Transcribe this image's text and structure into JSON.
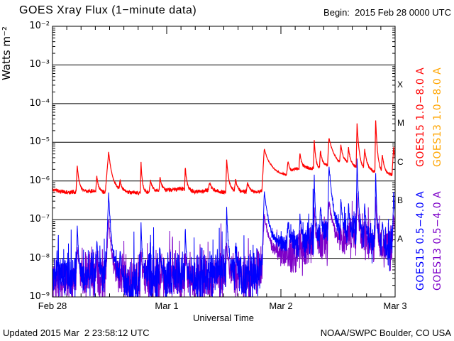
{
  "header": {
    "title": "GOES Xray Flux (1−minute data)",
    "begin_label": "Begin:  2015 Feb 28 0000 UTC"
  },
  "footer": {
    "updated": "Updated 2015 Mar  2 23:58:12 UTC",
    "source": "NOAA/SWPC Boulder, CO USA"
  },
  "chart_data": {
    "type": "line",
    "title": "GOES Xray Flux (1−minute data)",
    "xlabel": "Universal Time",
    "ylabel": "Watts m⁻²",
    "x_unit": "hours since 2015 Feb 28 0000 UTC",
    "x_range_hours": [
      0,
      72
    ],
    "y_scale": "log10",
    "ylim_log10": [
      -9,
      -2
    ],
    "y_decades": [
      -2,
      -3,
      -4,
      -5,
      -6,
      -7,
      -8,
      -9
    ],
    "y_tick_labels": [
      "10⁻²",
      "10⁻³",
      "10⁻⁴",
      "10⁻⁵",
      "10⁻⁶",
      "10⁻⁷",
      "10⁻⁸",
      "10⁻⁹"
    ],
    "grid_decades": [
      -3,
      -4,
      -5,
      -6,
      -7,
      -8
    ],
    "x_ticks": [
      {
        "t": 0,
        "label": "Feb 28"
      },
      {
        "t": 24,
        "label": "Mar 1"
      },
      {
        "t": 48,
        "label": "Mar 2"
      },
      {
        "t": 72,
        "label": "Mar 3"
      }
    ],
    "x_minor_tick_hours": 3,
    "flare_class_bands": [
      {
        "letter": "X",
        "log10_center": -3.5
      },
      {
        "letter": "M",
        "log10_center": -4.5
      },
      {
        "letter": "C",
        "log10_center": -5.5
      },
      {
        "letter": "B",
        "log10_center": -6.5
      },
      {
        "letter": "A",
        "log10_center": -7.5
      }
    ],
    "legend": [
      {
        "label": "GOES15 1.0−8.0 A",
        "color": "#ff0000",
        "column": "inner",
        "half": "top"
      },
      {
        "label": "GOES13 1.0−8.0 A",
        "color": "#ffa500",
        "column": "outer",
        "half": "top"
      },
      {
        "label": "GOES15 0.5−4.0 A",
        "color": "#0000ff",
        "column": "inner",
        "half": "bottom"
      },
      {
        "label": "GOES13 0.5−4.0 A",
        "color": "#7d00c8",
        "column": "outer",
        "half": "bottom"
      }
    ],
    "series": [
      {
        "name": "GOES13 0.5-4.0 A",
        "id": "series-goes13-short",
        "color": "#7d00c8",
        "stroke_width": 1,
        "seed": 23,
        "noise_amp": 0.5,
        "spike_prob": 0.06,
        "spike_amp": 0.9,
        "baseline_log10": [
          [
            0,
            -8.6
          ],
          [
            6,
            -8.5
          ],
          [
            12,
            -8.45
          ],
          [
            18,
            -8.65
          ],
          [
            24,
            -8.5
          ],
          [
            30,
            -8.6
          ],
          [
            36,
            -8.45
          ],
          [
            42,
            -8.5
          ],
          [
            48,
            -8.0
          ],
          [
            52,
            -7.8
          ],
          [
            56,
            -7.6
          ],
          [
            60,
            -7.6
          ],
          [
            64,
            -7.5
          ],
          [
            68,
            -7.7
          ],
          [
            72,
            -7.7
          ]
        ],
        "flares": [
          [
            5.2,
            0.8,
            0.25,
            0.4
          ],
          [
            11.8,
            1.5,
            0.6,
            0.7
          ],
          [
            18.6,
            0.8,
            0.15,
            0.3
          ],
          [
            27.9,
            0.7,
            0.15,
            0.3
          ],
          [
            36.6,
            0.9,
            0.2,
            0.4
          ],
          [
            44.5,
            1.4,
            0.5,
            1.5
          ],
          [
            55.0,
            1.0,
            0.15,
            0.3
          ],
          [
            58.1,
            1.1,
            0.3,
            1.0
          ],
          [
            64.0,
            1.2,
            0.2,
            0.4
          ],
          [
            67.9,
            1.3,
            0.15,
            0.35
          ],
          [
            71.7,
            0.9,
            0.3,
            0.4
          ]
        ]
      },
      {
        "name": "GOES15 1.0-8.0 A",
        "id": "series-goes15-long",
        "color": "#ff0000",
        "stroke_width": 1.2,
        "seed": 11,
        "noise_amp": 0.045,
        "spike_prob": 0,
        "spike_amp": 0,
        "baseline_log10": [
          [
            0,
            -6.22
          ],
          [
            3,
            -6.3
          ],
          [
            6,
            -6.27
          ],
          [
            9,
            -6.25
          ],
          [
            12,
            -6.3
          ],
          [
            15,
            -6.28
          ],
          [
            18,
            -6.32
          ],
          [
            21,
            -6.28
          ],
          [
            24,
            -6.24
          ],
          [
            27,
            -6.2
          ],
          [
            30,
            -6.28
          ],
          [
            33,
            -6.24
          ],
          [
            36,
            -6.3
          ],
          [
            39,
            -6.27
          ],
          [
            42,
            -6.3
          ],
          [
            45,
            -6.25
          ],
          [
            46,
            -6.15
          ],
          [
            48,
            -6.02
          ],
          [
            50,
            -5.92
          ],
          [
            51,
            -5.75
          ],
          [
            53,
            -5.68
          ],
          [
            56,
            -5.7
          ],
          [
            58,
            -5.6
          ],
          [
            60,
            -5.65
          ],
          [
            62,
            -5.58
          ],
          [
            63,
            -5.62
          ],
          [
            65,
            -5.72
          ],
          [
            67,
            -5.76
          ],
          [
            69,
            -5.82
          ],
          [
            71,
            -5.85
          ],
          [
            72,
            -5.8
          ]
        ],
        "flares": [
          [
            5.2,
            0.68,
            0.25,
            0.45
          ],
          [
            9.3,
            0.4,
            0.2,
            0.35
          ],
          [
            11.8,
            1.05,
            0.7,
            0.9
          ],
          [
            14.2,
            0.25,
            0.2,
            0.3
          ],
          [
            18.6,
            0.8,
            0.15,
            0.3
          ],
          [
            20.6,
            0.3,
            0.3,
            0.5
          ],
          [
            22.6,
            0.35,
            0.2,
            0.4
          ],
          [
            27.9,
            0.6,
            0.15,
            0.35
          ],
          [
            33.0,
            0.2,
            0.3,
            0.5
          ],
          [
            36.6,
            0.85,
            0.2,
            0.5
          ],
          [
            38.5,
            0.3,
            0.3,
            0.4
          ],
          [
            41.0,
            0.25,
            0.3,
            0.5
          ],
          [
            44.5,
            1.1,
            0.5,
            2.2
          ],
          [
            49.5,
            0.35,
            0.3,
            0.5
          ],
          [
            52.0,
            0.4,
            0.2,
            0.4
          ],
          [
            55.0,
            0.75,
            0.15,
            0.35
          ],
          [
            56.3,
            0.45,
            0.2,
            0.5
          ],
          [
            58.1,
            0.7,
            0.3,
            1.4
          ],
          [
            60.6,
            0.45,
            0.25,
            0.5
          ],
          [
            62.2,
            0.4,
            0.2,
            0.4
          ],
          [
            64.0,
            1.15,
            0.2,
            0.5
          ],
          [
            65.6,
            0.5,
            0.25,
            0.6
          ],
          [
            67.9,
            1.4,
            0.15,
            0.45
          ],
          [
            69.3,
            0.45,
            0.2,
            0.5
          ],
          [
            71.7,
            0.7,
            0.35,
            0.5
          ]
        ]
      },
      {
        "name": "GOES15 0.5-4.0 A",
        "id": "series-goes15-short",
        "color": "#0000ff",
        "stroke_width": 1,
        "seed": 7,
        "noise_amp": 0.5,
        "spike_prob": 0.07,
        "spike_amp": 1.1,
        "baseline_log10": [
          [
            0,
            -8.55
          ],
          [
            2,
            -8.4
          ],
          [
            4,
            -8.5
          ],
          [
            6,
            -8.6
          ],
          [
            8,
            -8.45
          ],
          [
            10,
            -8.4
          ],
          [
            12,
            -8.3
          ],
          [
            14,
            -8.5
          ],
          [
            16,
            -8.7
          ],
          [
            18,
            -8.6
          ],
          [
            20,
            -8.4
          ],
          [
            22,
            -8.5
          ],
          [
            24,
            -8.45
          ],
          [
            26,
            -8.4
          ],
          [
            28,
            -8.5
          ],
          [
            30,
            -8.55
          ],
          [
            32,
            -8.5
          ],
          [
            34,
            -8.4
          ],
          [
            36,
            -8.3
          ],
          [
            38,
            -8.4
          ],
          [
            40,
            -8.5
          ],
          [
            42,
            -8.45
          ],
          [
            44,
            -8.3
          ],
          [
            46,
            -8.2
          ],
          [
            48,
            -7.9
          ],
          [
            50,
            -7.7
          ],
          [
            52,
            -7.6
          ],
          [
            54,
            -7.45
          ],
          [
            56,
            -7.5
          ],
          [
            58,
            -7.3
          ],
          [
            60,
            -7.5
          ],
          [
            62,
            -7.45
          ],
          [
            64,
            -7.3
          ],
          [
            66,
            -7.6
          ],
          [
            68,
            -7.7
          ],
          [
            70,
            -7.9
          ],
          [
            72,
            -7.6
          ]
        ],
        "flares": [
          [
            5.2,
            1.4,
            0.25,
            0.4
          ],
          [
            9.3,
            0.9,
            0.2,
            0.3
          ],
          [
            11.8,
            2.0,
            0.6,
            0.7
          ],
          [
            14.2,
            0.7,
            0.2,
            0.3
          ],
          [
            18.6,
            1.5,
            0.15,
            0.3
          ],
          [
            22.6,
            0.8,
            0.2,
            0.3
          ],
          [
            27.9,
            1.3,
            0.15,
            0.3
          ],
          [
            36.6,
            1.6,
            0.2,
            0.45
          ],
          [
            38.5,
            0.7,
            0.2,
            0.3
          ],
          [
            44.5,
            2.0,
            0.5,
            1.8
          ],
          [
            49.5,
            0.6,
            0.2,
            0.4
          ],
          [
            52.0,
            0.7,
            0.2,
            0.3
          ],
          [
            55.0,
            1.6,
            0.15,
            0.3
          ],
          [
            56.3,
            0.8,
            0.2,
            0.4
          ],
          [
            58.1,
            1.7,
            0.3,
            1.1
          ],
          [
            60.6,
            0.9,
            0.2,
            0.4
          ],
          [
            62.2,
            0.8,
            0.2,
            0.3
          ],
          [
            64.0,
            1.9,
            0.2,
            0.4
          ],
          [
            65.6,
            0.9,
            0.2,
            0.5
          ],
          [
            67.9,
            2.0,
            0.15,
            0.35
          ],
          [
            69.3,
            0.8,
            0.2,
            0.4
          ],
          [
            71.7,
            1.4,
            0.3,
            0.4
          ]
        ]
      }
    ],
    "colors": {
      "frame": "#000000",
      "grid": "#000000",
      "goes15_long": "#ff0000",
      "goes13_long": "#ffa500",
      "goes15_short": "#0000ff",
      "goes13_short": "#7d00c8"
    }
  }
}
